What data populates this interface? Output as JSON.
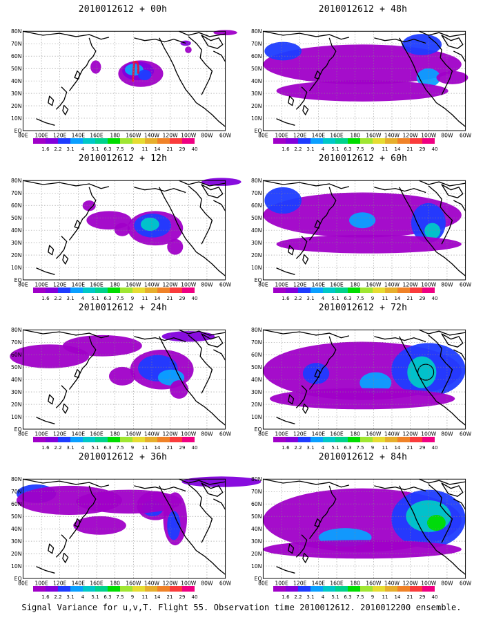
{
  "figure": {
    "caption": "Signal Variance for u,v,T. Flight 55. Observation time 2010012612. 2010012200 ensemble."
  },
  "colorbar": {
    "labels": [
      "1.6",
      "2.2",
      "3.1",
      "4",
      "5.1",
      "6.3",
      "7.5",
      "9",
      "11",
      "14",
      "21",
      "29",
      "40"
    ],
    "colors": [
      "#a000c8",
      "#8200dc",
      "#1e3cff",
      "#0aa0ff",
      "#00c8c8",
      "#00d28c",
      "#00dc00",
      "#a0e632",
      "#e6dc32",
      "#e6af2d",
      "#f08228",
      "#fa3c3c",
      "#f00082"
    ]
  },
  "map_axes": {
    "y_labels": [
      "80N",
      "70N",
      "60N",
      "50N",
      "40N",
      "30N",
      "20N",
      "10N",
      "EQ"
    ],
    "x_labels": [
      "80E",
      "100E",
      "120E",
      "140E",
      "160E",
      "180",
      "160W",
      "140W",
      "120W",
      "100W",
      "80W",
      "60W"
    ]
  },
  "panels": [
    {
      "title": "2010012612 + 00h"
    },
    {
      "title": "2010012612 + 12h"
    },
    {
      "title": "2010012612 + 24h"
    },
    {
      "title": "2010012612 + 36h"
    },
    {
      "title": "2010012612 + 48h"
    },
    {
      "title": "2010012612 + 60h"
    },
    {
      "title": "2010012612 + 72h"
    },
    {
      "title": "2010012612 + 84h"
    }
  ]
}
